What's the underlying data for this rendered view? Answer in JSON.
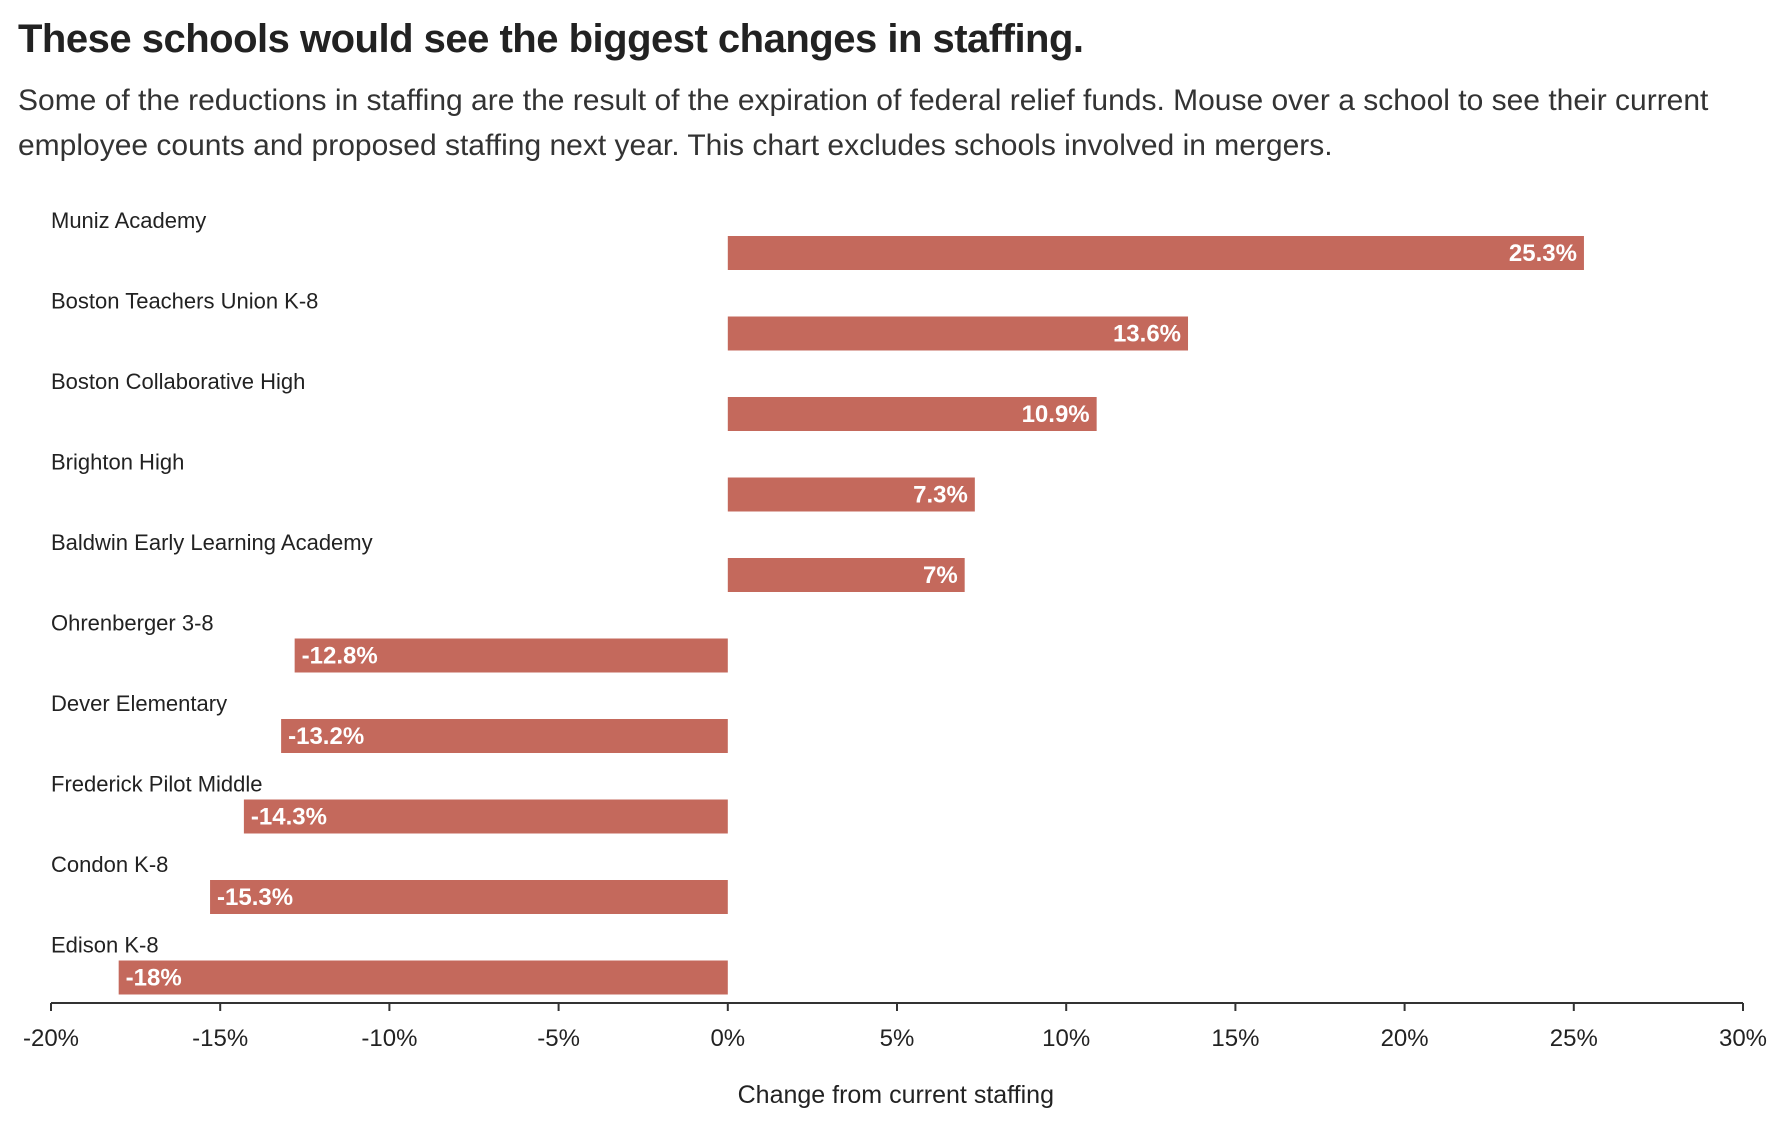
{
  "header": {
    "title": "These schools would see the biggest changes in staffing.",
    "subtitle": "Some of the reductions in staffing are the result of the expiration of federal relief funds. Mouse over a school to see their current employee counts and proposed staffing next year. This chart excludes schools involved in mergers."
  },
  "colors": {
    "bar": "#c4695c",
    "axis": "#333333",
    "bar_label_text": "#ffffff"
  },
  "chart_data": {
    "type": "bar",
    "orientation": "horizontal",
    "categories": [
      "Muniz Academy",
      "Boston Teachers Union K-8",
      "Boston Collaborative High",
      "Brighton High",
      "Baldwin Early Learning Academy",
      "Ohrenberger 3-8",
      "Dever Elementary",
      "Frederick Pilot Middle",
      "Condon K-8",
      "Edison K-8"
    ],
    "values": [
      25.3,
      13.6,
      10.9,
      7.3,
      7,
      -12.8,
      -13.2,
      -14.3,
      -15.3,
      -18
    ],
    "data_labels": [
      "25.3%",
      "13.6%",
      "10.9%",
      "7.3%",
      "7%",
      "-12.8%",
      "-13.2%",
      "-14.3%",
      "-15.3%",
      "-18%"
    ],
    "xlabel": "Change from current staffing",
    "xlim": [
      -20,
      30
    ],
    "xticks": [
      -20,
      -15,
      -10,
      -5,
      0,
      5,
      10,
      15,
      20,
      25,
      30
    ],
    "xtick_labels": [
      "-20%",
      "-15%",
      "-10%",
      "-5%",
      "0%",
      "5%",
      "10%",
      "15%",
      "20%",
      "25%",
      "30%"
    ],
    "grid": false,
    "legend": "none"
  }
}
